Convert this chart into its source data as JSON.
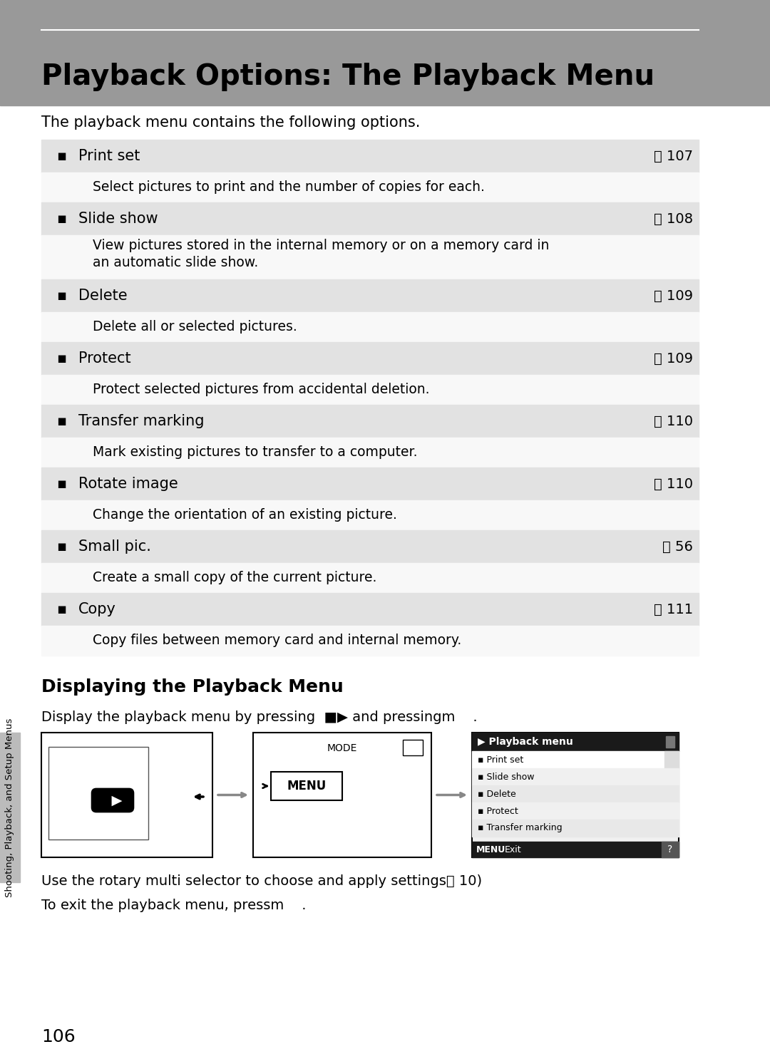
{
  "title": "Playback Options: The Playback Menu",
  "title_bg": "#999999",
  "page_bg": "#ffffff",
  "intro_text": "The playback menu contains the following options.",
  "menu_items": [
    {
      "label": "Print set",
      "page": "107",
      "desc": "Select pictures to print and the number of copies for each.",
      "desc2": ""
    },
    {
      "label": "Slide show",
      "page": "108",
      "desc": "View pictures stored in the internal memory or on a memory card in",
      "desc2": "an automatic slide show."
    },
    {
      "label": "Delete",
      "page": "109",
      "desc": "Delete all or selected pictures.",
      "desc2": ""
    },
    {
      "label": "Protect",
      "page": "109",
      "desc": "Protect selected pictures from accidental deletion.",
      "desc2": ""
    },
    {
      "label": "Transfer marking",
      "page": "110",
      "desc": "Mark existing pictures to transfer to a computer.",
      "desc2": ""
    },
    {
      "label": "Rotate image",
      "page": "110",
      "desc": "Change the orientation of an existing picture.",
      "desc2": ""
    },
    {
      "label": "Small pic.",
      "page": "56",
      "desc": "Create a small copy of the current picture.",
      "desc2": ""
    },
    {
      "label": "Copy",
      "page": "111",
      "desc": "Copy files between memory card and internal memory.",
      "desc2": ""
    }
  ],
  "section2_title": "Displaying the Playback Menu",
  "section2_body": "Display the playback menu by pressing",
  "section2_body2": " and pressingm    .",
  "footer1": "Use the rotary multi selector to choose and apply settings",
  "footer1b": " 10)",
  "footer2": "To exit the playback menu, pressm    .",
  "page_number": "106",
  "sidebar_text": "Shooting, Playback, and Setup Menus",
  "sidebar_bg": "#bbbbbb",
  "row_bg": "#e2e2e2",
  "desc_bg": "#f8f8f8"
}
